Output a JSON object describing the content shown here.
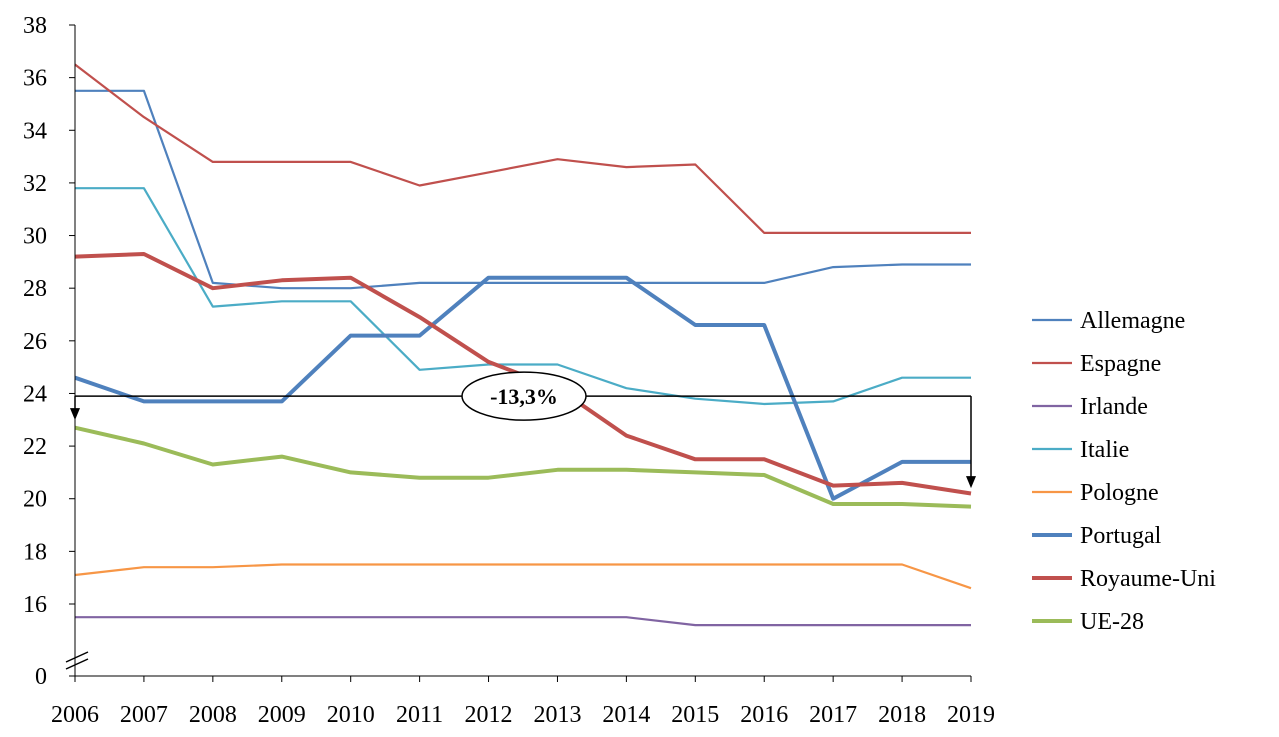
{
  "chart_data": {
    "type": "line",
    "title": "",
    "xlabel": "",
    "ylabel": "",
    "x": [
      "2006",
      "2007",
      "2008",
      "2009",
      "2010",
      "2011",
      "2012",
      "2013",
      "2014",
      "2015",
      "2016",
      "2017",
      "2018",
      "2019"
    ],
    "y_ticks": [
      "0",
      "16",
      "18",
      "20",
      "22",
      "24",
      "26",
      "28",
      "30",
      "32",
      "34",
      "36",
      "38"
    ],
    "y_axis_break": "between 0 and 16",
    "ylim": [
      15,
      38
    ],
    "grid": false,
    "legend_position": "right",
    "series": [
      {
        "name": "Allemagne",
        "color": "#4F81BD",
        "width": "thin",
        "values": [
          35.5,
          35.5,
          28.2,
          28.0,
          28.0,
          28.2,
          28.2,
          28.2,
          28.2,
          28.2,
          28.2,
          28.8,
          28.9,
          28.9
        ]
      },
      {
        "name": "Espagne",
        "color": "#C0504D",
        "width": "thin",
        "values": [
          36.5,
          34.5,
          32.8,
          32.8,
          32.8,
          31.9,
          32.4,
          32.9,
          32.6,
          32.7,
          30.1,
          30.1,
          30.1,
          30.1
        ]
      },
      {
        "name": "Irlande",
        "color": "#8064A2",
        "width": "thin",
        "values": [
          15.5,
          15.5,
          15.5,
          15.5,
          15.5,
          15.5,
          15.5,
          15.5,
          15.5,
          15.2,
          15.2,
          15.2,
          15.2,
          15.2
        ]
      },
      {
        "name": "Italie",
        "color": "#4BACC6",
        "width": "thin",
        "values": [
          31.8,
          31.8,
          27.3,
          27.5,
          27.5,
          24.9,
          25.1,
          25.1,
          24.2,
          23.8,
          23.6,
          23.7,
          24.6,
          24.6
        ]
      },
      {
        "name": "Pologne",
        "color": "#F79646",
        "width": "thin",
        "values": [
          17.1,
          17.4,
          17.4,
          17.5,
          17.5,
          17.5,
          17.5,
          17.5,
          17.5,
          17.5,
          17.5,
          17.5,
          17.5,
          16.6
        ]
      },
      {
        "name": "Portugal",
        "color": "#4F81BD",
        "width": "thick",
        "values": [
          24.6,
          23.7,
          23.7,
          23.7,
          26.2,
          26.2,
          28.4,
          28.4,
          28.4,
          26.6,
          26.6,
          20.0,
          21.4,
          21.4
        ]
      },
      {
        "name": "Royaume-Uni",
        "color": "#C0504D",
        "width": "thick",
        "values": [
          29.2,
          29.3,
          28.0,
          28.3,
          28.4,
          26.9,
          25.2,
          24.2,
          22.4,
          21.5,
          21.5,
          20.5,
          20.6,
          20.2
        ]
      },
      {
        "name": " UE-28",
        "color": "#9BBB59",
        "width": "thick",
        "values": [
          22.7,
          22.1,
          21.3,
          21.6,
          21.0,
          20.8,
          20.8,
          21.1,
          21.1,
          21.0,
          20.9,
          19.8,
          19.8,
          19.7
        ]
      }
    ],
    "annotation": {
      "text": "-13,3%",
      "from_x": "2006",
      "to_x": "2019",
      "level": 23.9
    }
  }
}
